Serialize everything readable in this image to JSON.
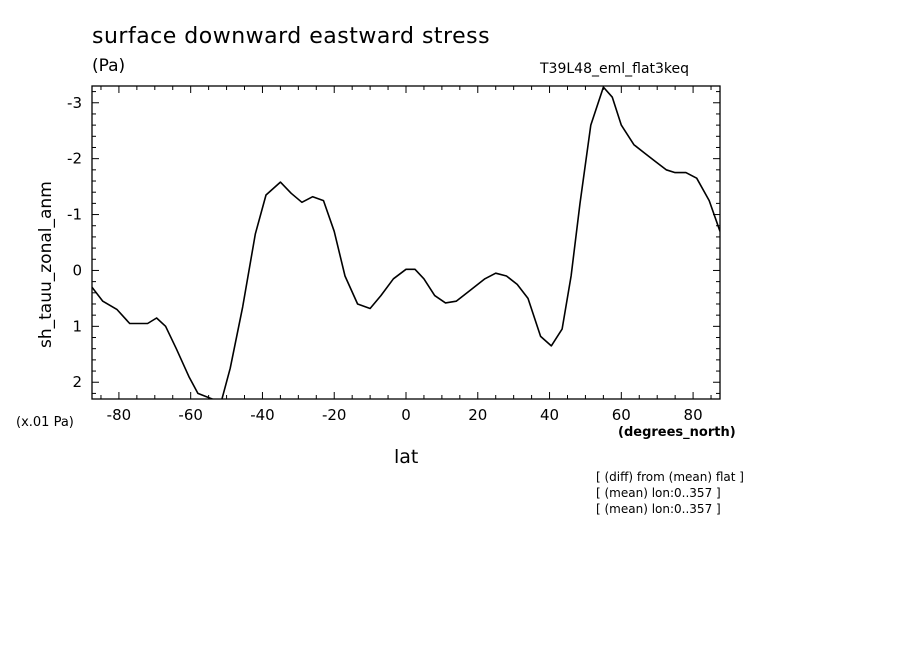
{
  "header": {
    "title": "surface downward eastward stress",
    "unit": "(Pa)",
    "run_name": "T39L48_eml_flat3keq",
    "scale_note": "(x.01 Pa)",
    "x_unit": "(degrees_north)"
  },
  "notes": [
    "[ (diff) from (mean) flat ]",
    "[ (mean) lon:0..357 ]",
    "[ (mean) lon:0..357 ]"
  ],
  "chart_data": {
    "type": "line",
    "title": "surface downward eastward stress",
    "xlabel": "lat",
    "ylabel": "sh_tauu_zonal_anm",
    "xlim": [
      -87.5,
      87.5
    ],
    "ylim": [
      2.3,
      -3.3
    ],
    "y_inverted": true,
    "x_ticks": [
      -80,
      -60,
      -40,
      -20,
      0,
      20,
      40,
      60,
      80
    ],
    "x_tick_labels": [
      "-80",
      "-60",
      "-40",
      "-20",
      "0",
      "20",
      "40",
      "60",
      "80"
    ],
    "y_ticks": [
      2,
      1,
      0,
      -1,
      -2,
      -3
    ],
    "y_tick_labels": [
      "2",
      "1",
      "0",
      "-1",
      "-2",
      "-3"
    ],
    "grid": false,
    "series": [
      {
        "x": [
          -87.5,
          -84.5,
          -80.5,
          -77,
          -72,
          -69.5,
          -67,
          -64,
          -60.5,
          -58,
          -54,
          -51.5,
          -49,
          -45.5,
          -42,
          -39,
          -35,
          -32,
          -29,
          -26,
          -23,
          -20,
          -17,
          -13.5,
          -10,
          -7,
          -3.5,
          0,
          2.5,
          5,
          8,
          11,
          14,
          18,
          22,
          25,
          28,
          31,
          34,
          37.5,
          40.5,
          43.5,
          46,
          48.5,
          51.5,
          55,
          57.5,
          60,
          63.5,
          66.5,
          69.5,
          72.5,
          75,
          78,
          81,
          84.5,
          87.5
        ],
        "y": [
          0.3,
          0.55,
          0.7,
          0.95,
          0.95,
          0.85,
          1.0,
          1.4,
          1.9,
          2.2,
          2.3,
          2.35,
          1.75,
          0.65,
          -0.65,
          -1.35,
          -1.58,
          -1.38,
          -1.22,
          -1.32,
          -1.25,
          -0.7,
          0.1,
          0.6,
          0.68,
          0.45,
          0.15,
          -0.02,
          -0.02,
          0.15,
          0.45,
          0.58,
          0.55,
          0.35,
          0.15,
          0.05,
          0.1,
          0.25,
          0.5,
          1.18,
          1.35,
          1.05,
          0.1,
          -1.2,
          -2.6,
          -3.28,
          -3.1,
          -2.6,
          -2.25,
          -2.1,
          -1.95,
          -1.8,
          -1.75,
          -1.75,
          -1.65,
          -1.25,
          -0.7
        ]
      }
    ]
  }
}
